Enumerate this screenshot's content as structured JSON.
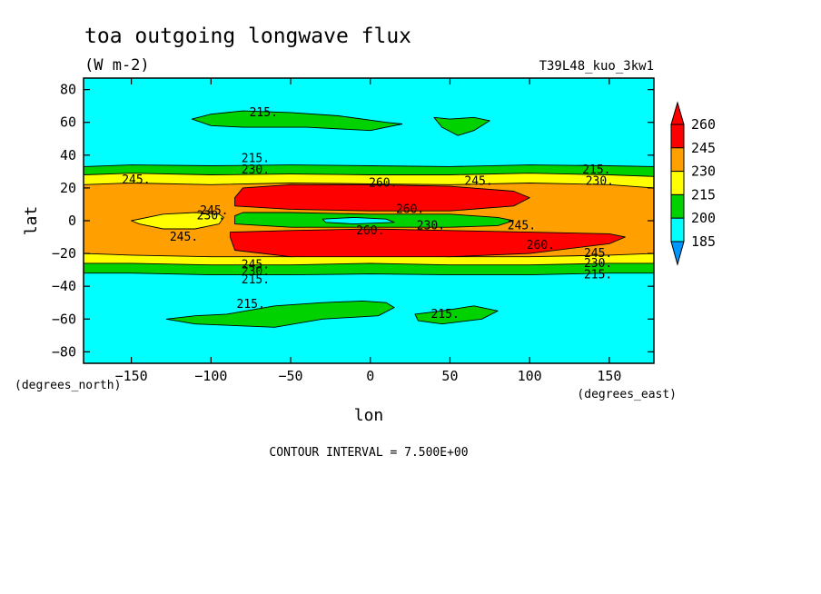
{
  "title": "toa outgoing longwave flux",
  "units": "(W m-2)",
  "run_label": "T39L48_kuo_3kw1",
  "footer": "CONTOUR INTERVAL = 7.500E+00",
  "chart_data": {
    "type": "contour",
    "xlabel": "lon",
    "ylabel": "lat",
    "x_units": "(degrees_east)",
    "y_units": "(degrees_north)",
    "xlim": [
      -180,
      178
    ],
    "ylim": [
      -87,
      87
    ],
    "xticks": [
      -150,
      -100,
      -50,
      0,
      50,
      100,
      150
    ],
    "yticks": [
      -80,
      -60,
      -40,
      -20,
      0,
      20,
      40,
      60,
      80
    ],
    "colorbar": {
      "levels": [
        185,
        200,
        215,
        230,
        245,
        260
      ],
      "colors": [
        "#0096ff",
        "#00ffff",
        "#00d200",
        "#ffff00",
        "#ffa000",
        "#ff0000"
      ],
      "below_color": "#0096ff",
      "above_color": "#ff0000"
    },
    "background_color": "#00ffff",
    "field": [
      {
        "level": 215,
        "color": "#00d200",
        "points": [
          [
            -180,
            33
          ],
          [
            -150,
            34
          ],
          [
            -100,
            33.5
          ],
          [
            -50,
            34
          ],
          [
            0,
            33.5
          ],
          [
            50,
            33
          ],
          [
            100,
            34
          ],
          [
            150,
            33.5
          ],
          [
            178,
            33
          ],
          [
            178,
            -32
          ],
          [
            150,
            -32
          ],
          [
            100,
            -33
          ],
          [
            50,
            -33
          ],
          [
            0,
            -32.5
          ],
          [
            -50,
            -33
          ],
          [
            -100,
            -33
          ],
          [
            -150,
            -32
          ],
          [
            -180,
            -32
          ]
        ]
      },
      {
        "level": 230,
        "color": "#ffff00",
        "points": [
          [
            -180,
            28
          ],
          [
            -150,
            29
          ],
          [
            -100,
            28
          ],
          [
            -50,
            28.5
          ],
          [
            0,
            28
          ],
          [
            50,
            28
          ],
          [
            100,
            29
          ],
          [
            150,
            28
          ],
          [
            178,
            27
          ],
          [
            178,
            -26
          ],
          [
            150,
            -26
          ],
          [
            100,
            -27
          ],
          [
            50,
            -27
          ],
          [
            0,
            -26
          ],
          [
            -50,
            -27
          ],
          [
            -100,
            -27
          ],
          [
            -150,
            -26
          ],
          [
            -180,
            -26
          ]
        ]
      },
      {
        "level": 245,
        "color": "#ffa000",
        "points": [
          [
            -180,
            22
          ],
          [
            -150,
            23
          ],
          [
            -100,
            22
          ],
          [
            -50,
            23
          ],
          [
            0,
            22.5
          ],
          [
            50,
            22
          ],
          [
            100,
            23
          ],
          [
            150,
            22
          ],
          [
            178,
            20
          ],
          [
            178,
            -20
          ],
          [
            150,
            -21
          ],
          [
            100,
            -22
          ],
          [
            50,
            -22
          ],
          [
            0,
            -21
          ],
          [
            -50,
            -22
          ],
          [
            -100,
            -22
          ],
          [
            -150,
            -21
          ],
          [
            -180,
            -20
          ]
        ]
      },
      {
        "level": 230,
        "color": "#ffff00",
        "points": [
          [
            -150,
            0
          ],
          [
            -130,
            4
          ],
          [
            -110,
            5
          ],
          [
            -95,
            4
          ],
          [
            -92,
            2
          ],
          [
            -95,
            -2
          ],
          [
            -110,
            -5
          ],
          [
            -130,
            -5
          ],
          [
            -145,
            -2
          ]
        ]
      },
      {
        "level": 260,
        "color": "#ff0000",
        "points": [
          [
            -85,
            14
          ],
          [
            -80,
            20
          ],
          [
            -50,
            22
          ],
          [
            0,
            22
          ],
          [
            50,
            21
          ],
          [
            90,
            18
          ],
          [
            100,
            14
          ],
          [
            90,
            9
          ],
          [
            50,
            6
          ],
          [
            0,
            6
          ],
          [
            -50,
            7
          ],
          [
            -85,
            9
          ]
        ]
      },
      {
        "level": 260,
        "color": "#ff0000",
        "points": [
          [
            -88,
            -10
          ],
          [
            -85,
            -18
          ],
          [
            -50,
            -22
          ],
          [
            0,
            -22
          ],
          [
            50,
            -22
          ],
          [
            100,
            -20
          ],
          [
            150,
            -14
          ],
          [
            160,
            -10
          ],
          [
            150,
            -8
          ],
          [
            100,
            -7
          ],
          [
            50,
            -6
          ],
          [
            0,
            -5
          ],
          [
            -50,
            -6
          ],
          [
            -88,
            -7
          ]
        ]
      },
      {
        "level": 215,
        "color": "#00d200",
        "points": [
          [
            -85,
            3
          ],
          [
            -80,
            5
          ],
          [
            -50,
            5
          ],
          [
            0,
            4
          ],
          [
            50,
            4
          ],
          [
            80,
            2
          ],
          [
            90,
            0
          ],
          [
            80,
            -3
          ],
          [
            50,
            -4
          ],
          [
            0,
            -4
          ],
          [
            -50,
            -4
          ],
          [
            -85,
            -2
          ]
        ]
      },
      {
        "level": 200,
        "color": "#00ffff",
        "points": [
          [
            -30,
            1
          ],
          [
            -10,
            2
          ],
          [
            10,
            1
          ],
          [
            15,
            -1
          ],
          [
            -10,
            -2
          ],
          [
            -28,
            -1
          ]
        ]
      },
      {
        "level": 215,
        "color": "#00d200",
        "points": [
          [
            -112,
            62
          ],
          [
            -100,
            65
          ],
          [
            -80,
            67
          ],
          [
            -50,
            66
          ],
          [
            -20,
            64
          ],
          [
            10,
            60
          ],
          [
            20,
            59
          ],
          [
            0,
            55
          ],
          [
            -40,
            57
          ],
          [
            -80,
            57
          ],
          [
            -100,
            58
          ]
        ]
      },
      {
        "level": 215,
        "color": "#00d200",
        "points": [
          [
            40,
            63
          ],
          [
            50,
            62
          ],
          [
            65,
            63
          ],
          [
            75,
            61
          ],
          [
            65,
            55
          ],
          [
            55,
            52
          ],
          [
            45,
            57
          ]
        ]
      },
      {
        "level": 215,
        "color": "#00d200",
        "points": [
          [
            -128,
            -60
          ],
          [
            -110,
            -58
          ],
          [
            -90,
            -57
          ],
          [
            -60,
            -52
          ],
          [
            -30,
            -50
          ],
          [
            -5,
            -49
          ],
          [
            10,
            -50
          ],
          [
            15,
            -53
          ],
          [
            5,
            -58
          ],
          [
            -30,
            -60
          ],
          [
            -60,
            -65
          ],
          [
            -110,
            -63
          ]
        ]
      },
      {
        "level": 215,
        "color": "#00d200",
        "points": [
          [
            28,
            -57
          ],
          [
            45,
            -55
          ],
          [
            65,
            -52
          ],
          [
            80,
            -55
          ],
          [
            70,
            -60
          ],
          [
            45,
            -63
          ],
          [
            30,
            -61
          ]
        ]
      }
    ],
    "contour_labels": [
      {
        "text": "215.",
        "lon": -67,
        "lat": 66
      },
      {
        "text": "215.",
        "lon": -72,
        "lat": 38
      },
      {
        "text": "230.",
        "lon": -72,
        "lat": 31
      },
      {
        "text": "245.",
        "lon": -147,
        "lat": 25
      },
      {
        "text": "260.",
        "lon": 8,
        "lat": 23
      },
      {
        "text": "245.",
        "lon": 68,
        "lat": 24
      },
      {
        "text": "215.",
        "lon": 142,
        "lat": 31
      },
      {
        "text": "230.",
        "lon": 144,
        "lat": 24
      },
      {
        "text": "245.",
        "lon": -98,
        "lat": 6
      },
      {
        "text": "230.",
        "lon": -100,
        "lat": 3
      },
      {
        "text": "260.",
        "lon": 25,
        "lat": 7
      },
      {
        "text": "260.",
        "lon": 0,
        "lat": -6
      },
      {
        "text": "230.",
        "lon": 38,
        "lat": -3
      },
      {
        "text": "245.",
        "lon": 95,
        "lat": -3
      },
      {
        "text": "245.",
        "lon": -117,
        "lat": -10
      },
      {
        "text": "260.",
        "lon": 107,
        "lat": -15
      },
      {
        "text": "245.",
        "lon": 143,
        "lat": -20
      },
      {
        "text": "230.",
        "lon": 143,
        "lat": -26
      },
      {
        "text": "215.",
        "lon": 143,
        "lat": -33
      },
      {
        "text": "245.",
        "lon": -72,
        "lat": -27
      },
      {
        "text": "230.",
        "lon": -72,
        "lat": -31
      },
      {
        "text": "215.",
        "lon": -72,
        "lat": -36
      },
      {
        "text": "215.",
        "lon": -75,
        "lat": -51
      },
      {
        "text": "215.",
        "lon": 47,
        "lat": -57
      }
    ]
  }
}
